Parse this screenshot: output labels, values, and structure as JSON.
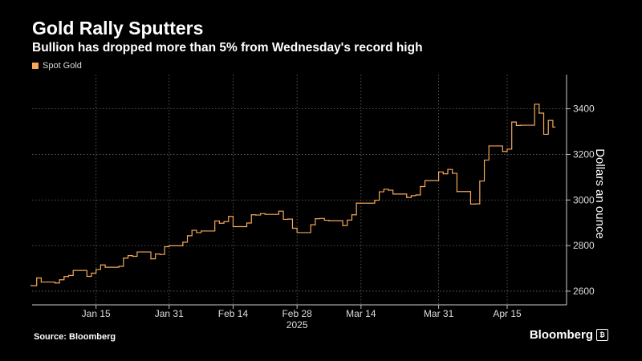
{
  "header": {
    "title": "Gold Rally Sputters",
    "subtitle": "Bullion has dropped more than 5% from Wednesday's record high"
  },
  "footer": {
    "source": "Source: Bloomberg",
    "brand": "Bloomberg"
  },
  "colors": {
    "background": "#000000",
    "series": "#f5a85b",
    "grid": "#6a6a6a",
    "text": "#ffffff"
  },
  "chart_data": {
    "type": "line",
    "ylabel": "Dollars an ounce",
    "ylim": [
      2540,
      3550
    ],
    "yticks": [
      2600,
      2800,
      3000,
      3200,
      3400
    ],
    "xlim": [
      "2025-01-01",
      "2025-04-28"
    ],
    "xticks": [
      {
        "date": "2025-01-15",
        "label": "Jan 15"
      },
      {
        "date": "2025-01-31",
        "label": "Jan 31"
      },
      {
        "date": "2025-02-14",
        "label": "Feb 14"
      },
      {
        "date": "2025-02-28",
        "label": "Feb 28"
      },
      {
        "date": "2025-03-14",
        "label": "Mar 14"
      },
      {
        "date": "2025-03-31",
        "label": "Mar 31"
      },
      {
        "date": "2025-04-15",
        "label": "Apr 15"
      }
    ],
    "year_label": "2025",
    "legend": {
      "position": "top-left"
    },
    "grid": true,
    "series": [
      {
        "name": "Spot Gold",
        "x": [
          "2025-01-01",
          "2025-01-02",
          "2025-01-03",
          "2025-01-06",
          "2025-01-07",
          "2025-01-08",
          "2025-01-09",
          "2025-01-10",
          "2025-01-13",
          "2025-01-14",
          "2025-01-15",
          "2025-01-16",
          "2025-01-17",
          "2025-01-20",
          "2025-01-21",
          "2025-01-22",
          "2025-01-23",
          "2025-01-24",
          "2025-01-27",
          "2025-01-28",
          "2025-01-29",
          "2025-01-30",
          "2025-01-31",
          "2025-02-03",
          "2025-02-04",
          "2025-02-05",
          "2025-02-06",
          "2025-02-07",
          "2025-02-10",
          "2025-02-11",
          "2025-02-12",
          "2025-02-13",
          "2025-02-14",
          "2025-02-17",
          "2025-02-18",
          "2025-02-19",
          "2025-02-20",
          "2025-02-21",
          "2025-02-24",
          "2025-02-25",
          "2025-02-26",
          "2025-02-27",
          "2025-02-28",
          "2025-03-03",
          "2025-03-04",
          "2025-03-05",
          "2025-03-06",
          "2025-03-07",
          "2025-03-10",
          "2025-03-11",
          "2025-03-12",
          "2025-03-13",
          "2025-03-14",
          "2025-03-17",
          "2025-03-18",
          "2025-03-19",
          "2025-03-20",
          "2025-03-21",
          "2025-03-24",
          "2025-03-25",
          "2025-03-26",
          "2025-03-27",
          "2025-03-28",
          "2025-03-31",
          "2025-04-01",
          "2025-04-02",
          "2025-04-03",
          "2025-04-04",
          "2025-04-07",
          "2025-04-08",
          "2025-04-09",
          "2025-04-10",
          "2025-04-11",
          "2025-04-14",
          "2025-04-15",
          "2025-04-16",
          "2025-04-17",
          "2025-04-18",
          "2025-04-21",
          "2025-04-22",
          "2025-04-23",
          "2025-04-24",
          "2025-04-25"
        ],
        "values": [
          2624,
          2658,
          2640,
          2636,
          2650,
          2664,
          2669,
          2691,
          2665,
          2679,
          2695,
          2715,
          2705,
          2709,
          2745,
          2756,
          2753,
          2772,
          2742,
          2763,
          2761,
          2795,
          2799,
          2815,
          2843,
          2867,
          2857,
          2864,
          2908,
          2898,
          2905,
          2928,
          2883,
          2899,
          2935,
          2934,
          2940,
          2937,
          2951,
          2915,
          2916,
          2876,
          2857,
          2891,
          2918,
          2919,
          2911,
          2909,
          2888,
          2912,
          2935,
          2986,
          2986,
          2999,
          3036,
          3047,
          3043,
          3026,
          3011,
          3019,
          3022,
          3059,
          3085,
          3123,
          3115,
          3134,
          3117,
          3037,
          2982,
          2983,
          3083,
          3175,
          3237,
          3213,
          3223,
          3342,
          3327,
          3328,
          3420,
          3381,
          3288,
          3349,
          3320
        ]
      }
    ]
  }
}
